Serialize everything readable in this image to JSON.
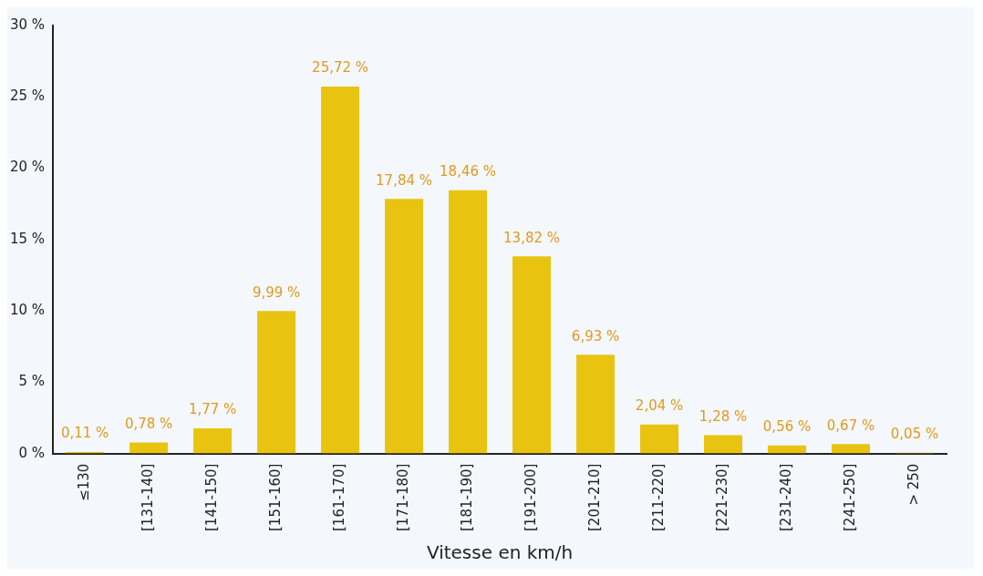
{
  "chart_data": {
    "type": "bar",
    "xlabel": "Vitesse en km/h",
    "categories": [
      "≤130",
      "[131-140]",
      "[141-150]",
      "[151-160]",
      "[161-170]",
      "[171-180]",
      "[181-190]",
      "[191-200]",
      "[201-210]",
      "[211-220]",
      "[221-230]",
      "[231-240]",
      "[241-250]",
      "> 250"
    ],
    "values": [
      0.11,
      0.78,
      1.77,
      9.99,
      25.72,
      17.84,
      18.46,
      13.82,
      6.93,
      2.04,
      1.28,
      0.56,
      0.67,
      0.05
    ],
    "value_labels": [
      "0,11 %",
      "0,78 %",
      "1,77 %",
      "9,99 %",
      "25,72 %",
      "17,84 %",
      "18,46 %",
      "13,82 %",
      "6,93 %",
      "2,04 %",
      "1,28 %",
      "0,56 %",
      "0,67 %",
      "0,05 %"
    ],
    "color": "#e8c410",
    "ylim": [
      0,
      30
    ],
    "yticks": [
      {
        "value": 0,
        "label": "0 %"
      },
      {
        "value": 5,
        "label": "5 %"
      },
      {
        "value": 10,
        "label": "10 %"
      },
      {
        "value": 15,
        "label": "15 %"
      },
      {
        "value": 20,
        "label": "20 %"
      },
      {
        "value": 25,
        "label": "25 %"
      },
      {
        "value": 30,
        "label": "30 %"
      }
    ],
    "grid": false,
    "legend": false
  }
}
